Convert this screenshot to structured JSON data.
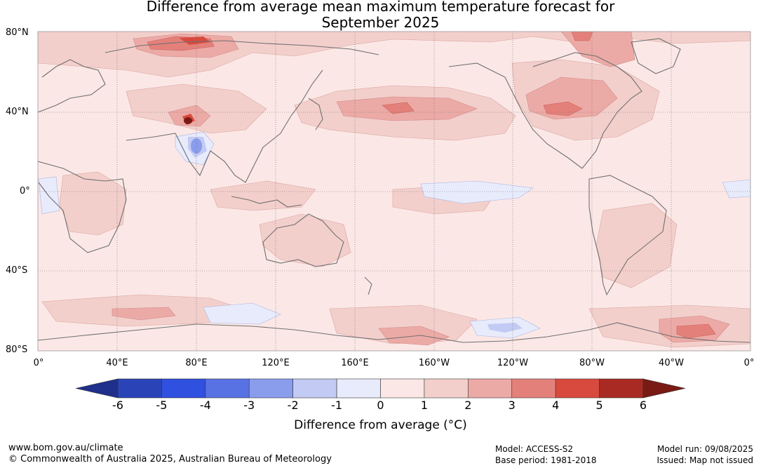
{
  "title": {
    "line1": "Difference from average mean maximum temperature forecast for",
    "line2": "September 2025"
  },
  "map": {
    "lat_labels": [
      "80°N",
      "40°N",
      "0°",
      "40°S",
      "80°S"
    ],
    "lon_labels": [
      "0°",
      "40°E",
      "80°E",
      "120°E",
      "160°E",
      "160°W",
      "120°W",
      "80°W",
      "40°W",
      "0°"
    ],
    "ocean_base_color": "#fbe8e6",
    "coast_color": "#707070"
  },
  "colorbar": {
    "ticks": [
      "-6",
      "-5",
      "-4",
      "-3",
      "-2",
      "-1",
      "0",
      "1",
      "2",
      "3",
      "4",
      "5",
      "6"
    ],
    "colors": [
      "#1e2f8c",
      "#2a44b8",
      "#3050e0",
      "#5872e4",
      "#8a9cec",
      "#c3cbf4",
      "#e8ebfb",
      "#fbe8e6",
      "#f3cfcc",
      "#ecaaa6",
      "#e4807a",
      "#d94a3e",
      "#a82a22",
      "#7a1a14"
    ],
    "label": "Difference from average (°C)"
  },
  "footer": {
    "website": "www.bom.gov.au/climate",
    "copyright": "© Commonwealth of Australia 2025, Australian Bureau of Meteorology",
    "model": "Model: ACCESS-S2",
    "base_period": "Base period: 1981-2018",
    "model_run": "Model run: 09/08/2025",
    "issued": "Issued: Map not issued"
  }
}
